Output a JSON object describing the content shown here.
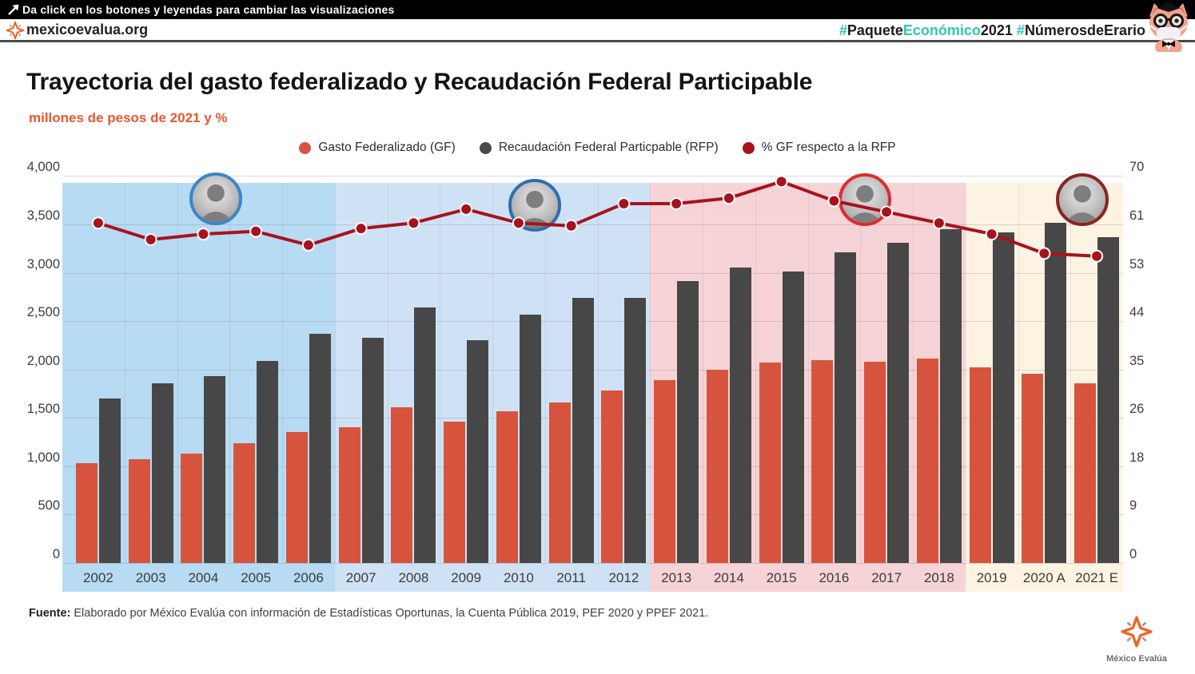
{
  "top_bar": {
    "message": "Da click en los botones y leyendas para cambiar las visualizaciones",
    "cursor_icon": "arrow-cursor-icon"
  },
  "header": {
    "site": "mexicoevalua.org",
    "logo_icon": "mexico-evalua-star",
    "mascot_icon": "pig-mascot-with-cap-glasses-mask",
    "hashtag_segments": [
      {
        "text": "#",
        "color": "#2fc7b2"
      },
      {
        "text": "Paquete",
        "color": "#1c1c1c"
      },
      {
        "text": "Económico",
        "color": "#2fc7b2"
      },
      {
        "text": "2021",
        "color": "#1c1c1c"
      },
      {
        "text": " #",
        "color": "#2fc7b2"
      },
      {
        "text": "NúmerosdeErario",
        "color": "#1c1c1c"
      }
    ]
  },
  "title": "Trayectoria del gasto federalizado y Recaudación Federal Participable",
  "subtitle": "millones de pesos de 2021 y %",
  "legend": {
    "items": [
      {
        "label": "Gasto Federalizado (GF)",
        "color": "#d6543e"
      },
      {
        "label": "Recaudación Federal Particpable (RFP)",
        "color": "#4a4a4a"
      },
      {
        "label": "%  GF respecto a la RFP",
        "color": "#a8121d"
      }
    ]
  },
  "chart_data": {
    "type": "bar",
    "subtype": "dual-axis bars + percentage line",
    "title": "Trayectoria del gasto federalizado y Recaudación Federal Participable",
    "units": "millones de pesos de 2021 y %",
    "categories": [
      "2002",
      "2003",
      "2004",
      "2005",
      "2006",
      "2007",
      "2008",
      "2009",
      "2010",
      "2011",
      "2012",
      "2013",
      "2014",
      "2015",
      "2016",
      "2017",
      "2018",
      "2019",
      "2020 A",
      "2021 E"
    ],
    "series": [
      {
        "name": "Gasto Federalizado (GF)",
        "axis": "left",
        "type": "bar",
        "color": "#d6543e",
        "values": [
          1030,
          1070,
          1130,
          1240,
          1350,
          1400,
          1610,
          1460,
          1570,
          1660,
          1780,
          1890,
          2000,
          2070,
          2100,
          2080,
          2110,
          2020,
          1960,
          1860
        ]
      },
      {
        "name": "Recaudación Federal Particpable (RFP)",
        "axis": "left",
        "type": "bar",
        "color": "#474747",
        "values": [
          1700,
          1860,
          1930,
          2090,
          2370,
          2330,
          2640,
          2300,
          2570,
          2740,
          2740,
          2910,
          3050,
          3010,
          3210,
          3310,
          3450,
          3420,
          3520,
          3370
        ]
      },
      {
        "name": "% GF respecto a la RFP",
        "axis": "right",
        "type": "line",
        "color": "#a8121d",
        "values": [
          61.5,
          58.5,
          59.5,
          60,
          57.5,
          60.5,
          61.5,
          64,
          61.5,
          61,
          65,
          65,
          66,
          69,
          65.5,
          63.5,
          61.5,
          59.5,
          56,
          55.5
        ]
      }
    ],
    "left_axis": {
      "range": [
        0,
        4000
      ],
      "tick_labels": [
        "0",
        "500",
        "1,000",
        "1,500",
        "2,000",
        "2,500",
        "3,000",
        "3,500",
        "4,000"
      ]
    },
    "right_axis": {
      "range": [
        0,
        70
      ],
      "tick_labels": [
        "0",
        "9",
        "18",
        "26",
        "35",
        "44",
        "53",
        "61",
        "70"
      ]
    },
    "grid": true,
    "legend_position": "top-center",
    "eras": [
      {
        "years": "2002-2006",
        "president_photo": "vicente-fox",
        "band_color": "#b6dbf2",
        "photo_ring": "#3d85c8",
        "from": 0,
        "to": 4
      },
      {
        "years": "2007-2012",
        "president_photo": "felipe-calderon",
        "band_color": "#cfe2f5",
        "photo_ring": "#2e6fad",
        "from": 5,
        "to": 10
      },
      {
        "years": "2013-2018",
        "president_photo": "enrique-pena-nieto",
        "band_color": "#f6d3d6",
        "photo_ring": "#df2b2e",
        "from": 11,
        "to": 16
      },
      {
        "years": "2019-2021",
        "president_photo": "lopez-obrador",
        "band_color": "#fdf3e3",
        "photo_ring": "#8a2420",
        "from": 17,
        "to": 19
      }
    ]
  },
  "footer": {
    "source_label": "Fuente:",
    "source_text": " Elaborado por México Evalúa con información de Estadísticas Oportunas, la Cuenta Pública 2019, PEF 2020 y PPEF 2021."
  },
  "brand": {
    "label": "México Evalúa",
    "logo_icon": "mexico-evalua-star"
  }
}
